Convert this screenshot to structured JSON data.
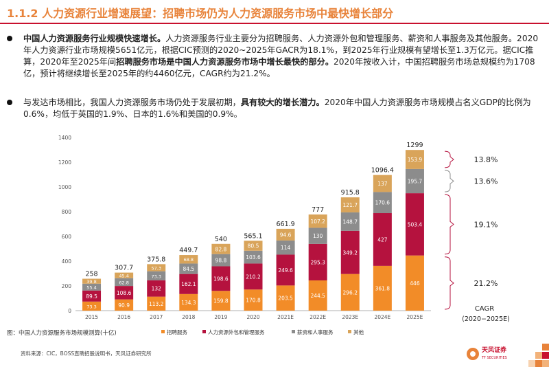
{
  "header": {
    "title": "1.1.2 人力资源行业增速展望：招聘市场仍为人力资源服务市场中最快增长部分"
  },
  "bullets": [
    {
      "parts": [
        {
          "bold": true,
          "text": "中国人力资源服务行业规模快速增长。"
        },
        {
          "bold": false,
          "text": "人力资源服务行业主要分为招聘服务、人力资源外包和管理服务、薪资和人事服务及其他服务。2020年人力资源行业市场规模5651亿元，根据CIC预测的2020~2025年GACR为18.1%，到2025年行业规模有望增长至1.3万亿元。据CIC推算，2020年至2025年间"
        },
        {
          "bold": true,
          "text": "招聘服务市场是中国人力资源服务市场中增长最快的部分。"
        },
        {
          "bold": false,
          "text": "2020年按收入计，中国招聘服务市场总规模约为1708亿，预计将继续增长至2025年的约4460亿元，CAGR约为21.2%。"
        }
      ]
    },
    {
      "parts": [
        {
          "bold": false,
          "text": "与发达市场相比，我国人力资源服务市场仍处于发展初期，"
        },
        {
          "bold": true,
          "text": "具有较大的增长潜力。"
        },
        {
          "bold": false,
          "text": "2020年中国人力资源服务市场规模占名义GDP的比例为0.6%，均低于英国的1.9%、日本的1.6%和美国的0.9%。"
        }
      ]
    }
  ],
  "chart_data": {
    "type": "bar",
    "stacked": true,
    "title": "中国人力资源服务市场规模测算(十亿)",
    "caption_prefix": "图：",
    "categories": [
      "2015",
      "2016",
      "2017",
      "2018",
      "2019",
      "2020",
      "2021E",
      "2022E",
      "2023E",
      "2024E",
      "2025E"
    ],
    "series": [
      {
        "name": "招聘服务",
        "color": "#F28C28",
        "values": [
          73.3,
          90.9,
          113.2,
          134.3,
          159.8,
          170.8,
          203.5,
          244.5,
          296.2,
          361.8,
          446
        ]
      },
      {
        "name": "人力资源外包和管理服务",
        "color": "#B5123E",
        "values": [
          89.5,
          108.6,
          132,
          162.1,
          198.6,
          210.2,
          249.6,
          295.3,
          349.2,
          427,
          503.4
        ]
      },
      {
        "name": "薪资和人事服务",
        "color": "#8C8C8C",
        "values": [
          55.4,
          62.8,
          73.3,
          84.5,
          98.8,
          103.6,
          114,
          130,
          148.7,
          170.6,
          195.7
        ]
      },
      {
        "name": "其他",
        "color": "#D9A45A",
        "values": [
          39.8,
          45.4,
          57.3,
          68.8,
          82.8,
          80.5,
          94.6,
          107.2,
          121.7,
          137,
          153.9
        ]
      }
    ],
    "totals": [
      "258",
      "307.7",
      "375.8",
      "449.7",
      "540",
      "565.1",
      "661.9",
      "777",
      "915.8",
      "1096.4",
      "1299"
    ],
    "ylim": [
      0,
      1400
    ],
    "yticks": [
      0,
      200,
      400,
      600,
      800,
      1000,
      1200,
      1400
    ],
    "legend_position": "bottom",
    "cagr_annotations": [
      {
        "series_index": 3,
        "label": "13.8%"
      },
      {
        "series_index": 2,
        "label": "13.6%"
      },
      {
        "series_index": 1,
        "label": "19.1%"
      },
      {
        "series_index": 0,
        "label": "21.2%"
      }
    ],
    "cagr_caption_line1": "CAGR",
    "cagr_caption_line2": "(2020−2025E)"
  },
  "footer": {
    "source": "资料来源：CIC，BOSS直聘招股说明书，天风证券研究所",
    "logo_name": "天风证券",
    "logo_sub": "TF SECURITIES",
    "logo_color": "#C8102E"
  }
}
